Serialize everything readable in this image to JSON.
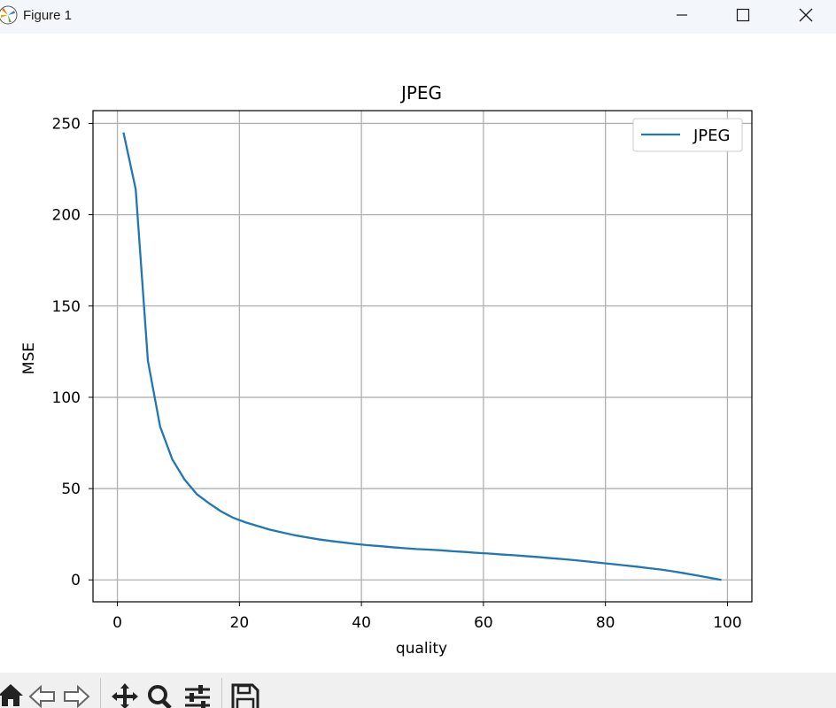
{
  "window": {
    "title": "Figure 1",
    "app_icon": "matplotlib-icon",
    "controls": [
      "minimize-icon",
      "maximize-icon",
      "close-icon"
    ]
  },
  "toolbar": {
    "buttons": [
      "home-icon",
      "back-icon",
      "forward-icon",
      "pan-icon",
      "zoom-icon",
      "configure-subplots-icon",
      "save-icon"
    ]
  },
  "colors": {
    "line": "#1f77b4",
    "grid": "#b0b0b0",
    "titlebar": "#f3f6fb",
    "toolbar": "#f0f0f0"
  },
  "chart_data": {
    "type": "line",
    "title": "JPEG",
    "xlabel": "quality",
    "ylabel": "MSE",
    "xlim": [
      -4,
      104
    ],
    "ylim": [
      -12,
      257
    ],
    "xticks": [
      0,
      20,
      40,
      60,
      80,
      100
    ],
    "yticks": [
      0,
      50,
      100,
      150,
      200,
      250
    ],
    "grid": true,
    "legend_position": "upper right",
    "series": [
      {
        "name": "JPEG",
        "x": [
          1,
          3,
          5,
          7,
          9,
          11,
          13,
          15,
          17,
          19,
          21,
          23,
          25,
          27,
          29,
          31,
          33,
          35,
          37,
          39,
          41,
          43,
          45,
          47,
          49,
          51,
          53,
          55,
          57,
          59,
          61,
          63,
          65,
          67,
          69,
          71,
          73,
          75,
          77,
          79,
          81,
          83,
          85,
          87,
          89,
          91,
          93,
          95,
          97,
          99
        ],
        "y": [
          245,
          214,
          120,
          84,
          66,
          55,
          47,
          42,
          37.5,
          34,
          31.5,
          29.5,
          27.5,
          26,
          24.5,
          23.3,
          22.2,
          21.3,
          20.5,
          19.7,
          19,
          18.5,
          17.9,
          17.4,
          16.9,
          16.6,
          16.2,
          15.7,
          15.3,
          14.8,
          14.4,
          13.9,
          13.5,
          13,
          12.5,
          11.9,
          11.4,
          10.8,
          10.1,
          9.4,
          8.7,
          8,
          7.3,
          6.5,
          5.7,
          4.7,
          3.6,
          2.4,
          1.2,
          0
        ]
      }
    ]
  }
}
